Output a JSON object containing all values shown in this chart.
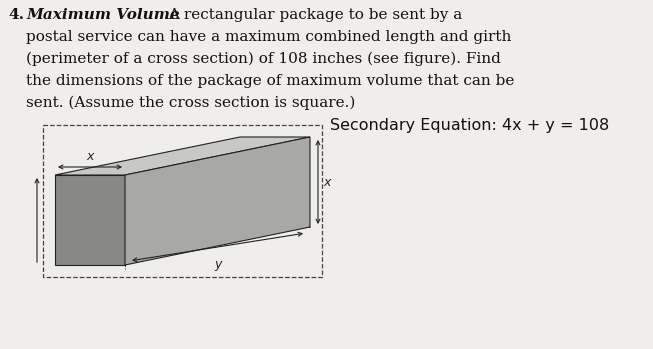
{
  "bg_color": "#f0eeea",
  "text_color": "#111111",
  "edge_color": "#222222",
  "shade_top": "#c8c8c4",
  "shade_front": "#888884",
  "shade_right": "#a8a8a4",
  "shade_left": "#787874",
  "title_number": "4.",
  "title_italic_bold": "Maximum Volume",
  "body_text": "A rectangular package to be sent by a\npostal service can have a maximum combined length and girth\n(perimeter of a cross section) of 108 inches (see figure). Find\nthe dimensions of the package of maximum volume that can be\nsent. (Assume the cross section is square.)",
  "secondary_eq": "Secondary Equation: 4x + y = 108",
  "figure_width": 6.53,
  "figure_height": 3.49,
  "dpi": 100
}
